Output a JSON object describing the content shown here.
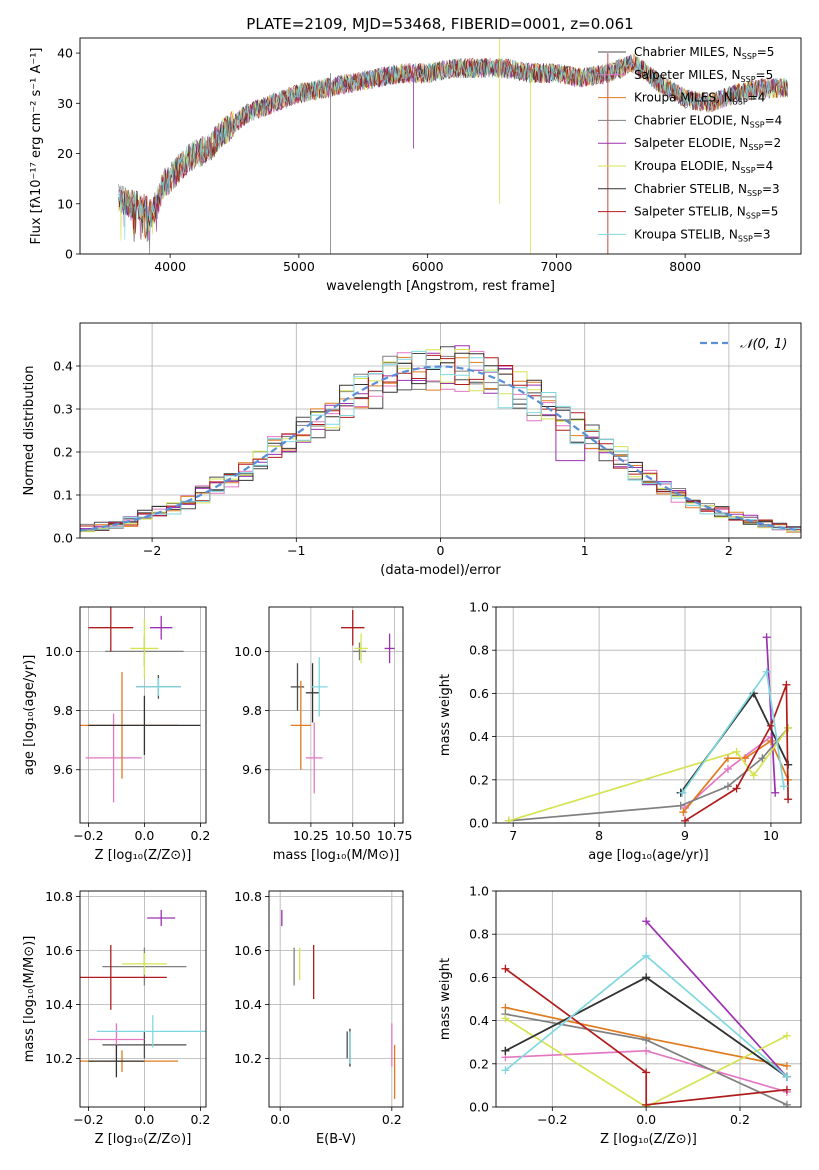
{
  "figure": {
    "title": "PLATE=2109, MJD=53468, FIBERID=0001, z=0.061"
  },
  "series_styles": [
    {
      "name": "Chabrier MILES",
      "nssp": "5",
      "color": "#4d4d4d"
    },
    {
      "name": "Salpeter MILES",
      "nssp": "5",
      "color": "#e377c2"
    },
    {
      "name": "Kroupa MILES",
      "nssp": "4",
      "color": "#e07b1f"
    },
    {
      "name": "Chabrier ELODIE",
      "nssp": "4",
      "color": "#7f7f7f"
    },
    {
      "name": "Salpeter ELODIE",
      "nssp": "2",
      "color": "#9b30b0"
    },
    {
      "name": "Kroupa ELODIE",
      "nssp": "4",
      "color": "#d5e352"
    },
    {
      "name": "Chabrier STELIB",
      "nssp": "3",
      "color": "#333333"
    },
    {
      "name": "Salpeter STELIB",
      "nssp": "5",
      "color": "#b01c1c"
    },
    {
      "name": "Kroupa STELIB",
      "nssp": "3",
      "color": "#7fd8e0"
    }
  ],
  "chart_data": [
    {
      "id": "spectrum",
      "type": "line",
      "xlabel": "wavelength [Angstrom, rest frame]",
      "ylabel": "Flux [fλ10⁻¹⁷ erg cm⁻² s⁻¹ A⁻¹]",
      "xlim": [
        3300,
        8900
      ],
      "ylim": [
        0,
        43
      ],
      "xticks": [
        4000,
        5000,
        6000,
        7000,
        8000
      ],
      "yticks": [
        0,
        10,
        20,
        30,
        40
      ],
      "legend_position": "right",
      "continuum": {
        "x": [
          3600,
          3700,
          3800,
          3850,
          3900,
          3950,
          4000,
          4100,
          4200,
          4300,
          4400,
          4500,
          4600,
          4700,
          4800,
          4900,
          5000,
          5200,
          5400,
          5600,
          5800,
          6000,
          6200,
          6400,
          6600,
          6800,
          7000,
          7200,
          7400,
          7500,
          7600,
          7800,
          8000,
          8200,
          8400,
          8600,
          8800
        ],
        "y": [
          11,
          10,
          9,
          8,
          10,
          14,
          15,
          18,
          20,
          21,
          24,
          26,
          28,
          29,
          30,
          31,
          32,
          33,
          34,
          35,
          36,
          36,
          37,
          37,
          37,
          36,
          36,
          35,
          36,
          37,
          38,
          34,
          31,
          30,
          32,
          33,
          33
        ]
      }
    },
    {
      "id": "residuals",
      "type": "histogram",
      "xlabel": "(data-model)/error",
      "ylabel": "Normed distribution",
      "xlim": [
        -2.5,
        2.5
      ],
      "ylim": [
        0,
        0.5
      ],
      "xticks": [
        -2,
        -1,
        0,
        1,
        2
      ],
      "yticks": [
        0,
        0.1,
        0.2,
        0.3,
        0.4
      ],
      "bin_width": 0.1,
      "reference_label": "𝒩(0, 1)",
      "reference_color": "#5b8fd6",
      "legend_position": "upper right"
    },
    {
      "id": "z-age",
      "type": "errorbar",
      "xlabel": "Z [log₁₀(Z/Z⊙)]",
      "ylabel": "age  [log₁₀(age/yr)]",
      "xlim": [
        -0.23,
        0.22
      ],
      "ylim": [
        9.42,
        10.15
      ],
      "xticks": [
        -0.2,
        0.0,
        0.2
      ],
      "yticks": [
        9.6,
        9.8,
        10.0
      ],
      "points": [
        {
          "s": 0,
          "x": 0.05,
          "y": 9.88,
          "xerr": 0.08,
          "yerr": 0.04
        },
        {
          "s": 1,
          "x": -0.11,
          "y": 9.64,
          "xerr": 0.1,
          "yerr": 0.15
        },
        {
          "s": 2,
          "x": -0.08,
          "y": 9.75,
          "xerr": 0.2,
          "yerr": 0.18
        },
        {
          "s": 3,
          "x": 0.0,
          "y": 10.0,
          "xerr": 0.14,
          "yerr": 0.05
        },
        {
          "s": 4,
          "x": 0.06,
          "y": 10.08,
          "xerr": 0.04,
          "yerr": 0.04
        },
        {
          "s": 5,
          "x": 0.0,
          "y": 10.01,
          "xerr": 0.05,
          "yerr": 0.1
        },
        {
          "s": 6,
          "x": 0.0,
          "y": 9.75,
          "xerr": 0.2,
          "yerr": 0.1
        },
        {
          "s": 7,
          "x": -0.12,
          "y": 10.08,
          "xerr": 0.08,
          "yerr": 0.08
        },
        {
          "s": 8,
          "x": 0.05,
          "y": 9.88,
          "xerr": 0.08,
          "yerr": 0.03
        }
      ]
    },
    {
      "id": "mass-age",
      "type": "errorbar",
      "xlabel": "mass [log₁₀(M/M⊙)]",
      "ylabel": "",
      "xlim": [
        10.0,
        10.8
      ],
      "ylim": [
        9.42,
        10.15
      ],
      "xticks": [
        10.25,
        10.5,
        10.75
      ],
      "yticks": [
        9.6,
        9.8,
        10.0
      ],
      "points": [
        {
          "s": 0,
          "x": 10.17,
          "y": 9.88,
          "xerr": 0.04,
          "yerr": 0.08
        },
        {
          "s": 1,
          "x": 10.27,
          "y": 9.64,
          "xerr": 0.05,
          "yerr": 0.12
        },
        {
          "s": 2,
          "x": 10.19,
          "y": 9.75,
          "xerr": 0.06,
          "yerr": 0.15
        },
        {
          "s": 3,
          "x": 10.54,
          "y": 10.0,
          "xerr": 0.04,
          "yerr": 0.03
        },
        {
          "s": 4,
          "x": 10.72,
          "y": 10.01,
          "xerr": 0.03,
          "yerr": 0.05
        },
        {
          "s": 5,
          "x": 10.55,
          "y": 10.01,
          "xerr": 0.04,
          "yerr": 0.05
        },
        {
          "s": 6,
          "x": 10.26,
          "y": 9.86,
          "xerr": 0.04,
          "yerr": 0.1
        },
        {
          "s": 7,
          "x": 10.5,
          "y": 10.08,
          "xerr": 0.07,
          "yerr": 0.06
        },
        {
          "s": 8,
          "x": 10.3,
          "y": 9.88,
          "xerr": 0.05,
          "yerr": 0.1
        }
      ]
    },
    {
      "id": "age-weight",
      "type": "line",
      "xlabel": "age  [log₁₀(age/yr)]",
      "ylabel": "mass weight",
      "xlim": [
        6.8,
        10.35
      ],
      "ylim": [
        0,
        1
      ],
      "xticks": [
        7,
        8,
        9,
        10
      ],
      "yticks": [
        0,
        0.2,
        0.4,
        0.6,
        0.8,
        1.0
      ],
      "series": [
        {
          "s": 0,
          "x": [
            8.95,
            9.8,
            10.2
          ],
          "y": [
            0.14,
            0.6,
            0.27
          ]
        },
        {
          "s": 1,
          "x": [
            9.0,
            9.5,
            10.0
          ],
          "y": [
            0.07,
            0.25,
            0.4
          ]
        },
        {
          "s": 2,
          "x": [
            8.98,
            9.5,
            9.7,
            10.0,
            10.2
          ],
          "y": [
            0.05,
            0.3,
            0.3,
            0.38,
            0.2
          ]
        },
        {
          "s": 3,
          "x": [
            6.95,
            8.95,
            9.5,
            9.9,
            10.2
          ],
          "y": [
            0.01,
            0.08,
            0.17,
            0.3,
            0.44
          ]
        },
        {
          "s": 4,
          "x": [
            9.95,
            10.05
          ],
          "y": [
            0.86,
            0.14
          ]
        },
        {
          "s": 5,
          "x": [
            6.95,
            9.6,
            9.8,
            10.2
          ],
          "y": [
            0.01,
            0.33,
            0.22,
            0.44
          ]
        },
        {
          "s": 6,
          "x": [
            8.95,
            9.8,
            10.2
          ],
          "y": [
            0.14,
            0.6,
            0.27
          ]
        },
        {
          "s": 7,
          "x": [
            9.0,
            9.6,
            10.0,
            10.18,
            10.2
          ],
          "y": [
            0.01,
            0.16,
            0.45,
            0.64,
            0.11
          ]
        },
        {
          "s": 8,
          "x": [
            8.97,
            9.95,
            10.15
          ],
          "y": [
            0.14,
            0.7,
            0.17
          ]
        }
      ]
    },
    {
      "id": "z-mass",
      "type": "errorbar",
      "xlabel": "Z [log₁₀(Z/Z⊙)]",
      "ylabel": "mass [log₁₀(M/M⊙)]",
      "xlim": [
        -0.23,
        0.22
      ],
      "ylim": [
        10.02,
        10.82
      ],
      "xticks": [
        -0.2,
        0.0,
        0.2
      ],
      "yticks": [
        10.2,
        10.4,
        10.6,
        10.8
      ],
      "points": [
        {
          "s": 0,
          "x": 0.0,
          "y": 10.25,
          "xerr": 0.15,
          "yerr": 0.05
        },
        {
          "s": 1,
          "x": -0.1,
          "y": 10.27,
          "xerr": 0.1,
          "yerr": 0.06
        },
        {
          "s": 2,
          "x": -0.08,
          "y": 10.19,
          "xerr": 0.2,
          "yerr": 0.04
        },
        {
          "s": 3,
          "x": 0.0,
          "y": 10.54,
          "xerr": 0.15,
          "yerr": 0.07
        },
        {
          "s": 4,
          "x": 0.06,
          "y": 10.72,
          "xerr": 0.05,
          "yerr": 0.03
        },
        {
          "s": 5,
          "x": 0.0,
          "y": 10.55,
          "xerr": 0.08,
          "yerr": 0.04
        },
        {
          "s": 6,
          "x": -0.1,
          "y": 10.19,
          "xerr": 0.1,
          "yerr": 0.06
        },
        {
          "s": 7,
          "x": -0.12,
          "y": 10.5,
          "xerr": 0.2,
          "yerr": 0.12
        },
        {
          "s": 8,
          "x": 0.03,
          "y": 10.3,
          "xerr": 0.2,
          "yerr": 0.06
        }
      ]
    },
    {
      "id": "ebv-mass",
      "type": "errorbar",
      "xlabel": "E(B-V)",
      "ylabel": "",
      "xlim": [
        -0.02,
        0.22
      ],
      "ylim": [
        10.02,
        10.82
      ],
      "xticks": [
        0.0,
        0.2
      ],
      "yticks": [
        10.2,
        10.4,
        10.6,
        10.8
      ],
      "points": [
        {
          "s": 0,
          "x": 0.12,
          "y": 10.25,
          "xerr": 0,
          "yerr": 0.05
        },
        {
          "s": 1,
          "x": 0.2,
          "y": 10.25,
          "xerr": 0,
          "yerr": 0.08
        },
        {
          "s": 2,
          "x": 0.205,
          "y": 10.15,
          "xerr": 0,
          "yerr": 0.1
        },
        {
          "s": 3,
          "x": 0.025,
          "y": 10.54,
          "xerr": 0,
          "yerr": 0.07
        },
        {
          "s": 4,
          "x": 0.003,
          "y": 10.72,
          "xerr": 0,
          "yerr": 0.03
        },
        {
          "s": 5,
          "x": 0.035,
          "y": 10.55,
          "xerr": 0,
          "yerr": 0.06
        },
        {
          "s": 6,
          "x": 0.125,
          "y": 10.24,
          "xerr": 0,
          "yerr": 0.07
        },
        {
          "s": 7,
          "x": 0.06,
          "y": 10.52,
          "xerr": 0,
          "yerr": 0.1
        },
        {
          "s": 8,
          "x": 0.125,
          "y": 10.24,
          "xerr": 0,
          "yerr": 0.06
        }
      ]
    },
    {
      "id": "z-weight",
      "type": "line",
      "xlabel": "Z [log₁₀(Z/Z⊙)]",
      "ylabel": "mass weight",
      "xlim": [
        -0.32,
        0.33
      ],
      "ylim": [
        0,
        1
      ],
      "xticks": [
        -0.2,
        0.0,
        0.2
      ],
      "yticks": [
        0,
        0.2,
        0.4,
        0.6,
        0.8,
        1.0
      ],
      "series": [
        {
          "s": 0,
          "x": [
            -0.3,
            0.0,
            0.3
          ],
          "y": [
            0.26,
            0.6,
            0.14
          ]
        },
        {
          "s": 1,
          "x": [
            -0.3,
            0.0,
            0.3
          ],
          "y": [
            0.23,
            0.26,
            0.07
          ]
        },
        {
          "s": 2,
          "x": [
            -0.3,
            0.0,
            0.3
          ],
          "y": [
            0.46,
            0.32,
            0.19
          ]
        },
        {
          "s": 3,
          "x": [
            -0.3,
            0.0,
            0.3
          ],
          "y": [
            0.43,
            0.31,
            0.01
          ]
        },
        {
          "s": 4,
          "x": [
            0.0,
            0.3
          ],
          "y": [
            0.86,
            0.14
          ]
        },
        {
          "s": 5,
          "x": [
            -0.3,
            0.0,
            0.3
          ],
          "y": [
            0.41,
            0.0,
            0.33
          ]
        },
        {
          "s": 6,
          "x": [
            -0.3,
            0.0,
            0.3
          ],
          "y": [
            0.26,
            0.6,
            0.14
          ]
        },
        {
          "s": 7,
          "x": [
            -0.3,
            0.0,
            0.0,
            0.3
          ],
          "y": [
            0.64,
            0.16,
            0.01,
            0.08
          ]
        },
        {
          "s": 8,
          "x": [
            -0.3,
            0.0,
            0.3
          ],
          "y": [
            0.17,
            0.7,
            0.14
          ]
        }
      ]
    }
  ]
}
